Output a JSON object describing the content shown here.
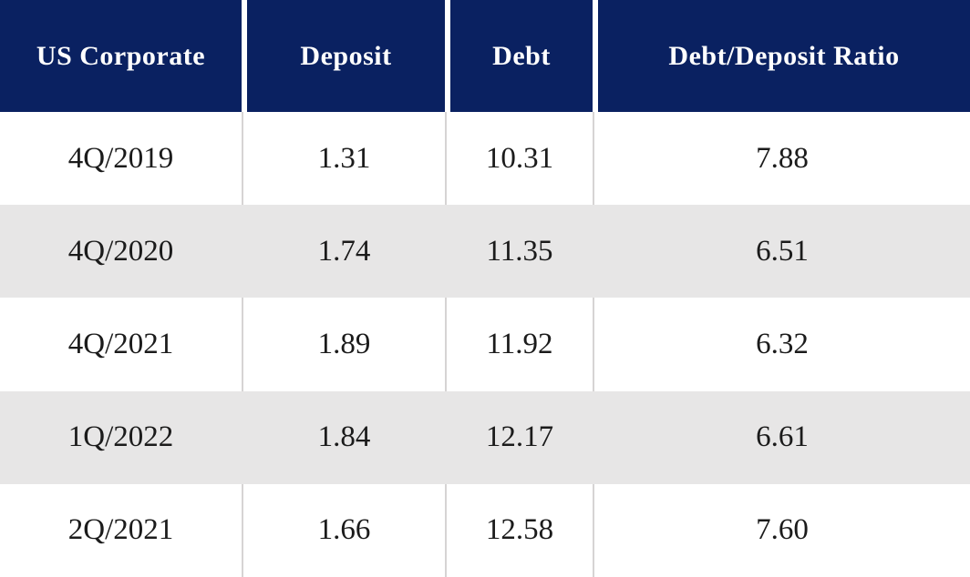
{
  "table": {
    "columns": [
      {
        "key": "period",
        "label": "US Corporate"
      },
      {
        "key": "deposit",
        "label": "Deposit"
      },
      {
        "key": "debt",
        "label": "Debt"
      },
      {
        "key": "ratio",
        "label": "Debt/Deposit Ratio"
      }
    ],
    "rows": [
      {
        "period": "4Q/2019",
        "deposit": "1.31",
        "debt": "10.31",
        "ratio": "7.88"
      },
      {
        "period": "4Q/2020",
        "deposit": "1.74",
        "debt": "11.35",
        "ratio": "6.51"
      },
      {
        "period": "4Q/2021",
        "deposit": "1.89",
        "debt": "11.92",
        "ratio": "6.32"
      },
      {
        "period": "1Q/2022",
        "deposit": "1.84",
        "debt": "12.17",
        "ratio": "6.61"
      },
      {
        "period": "2Q/2021",
        "deposit": "1.66",
        "debt": "12.58",
        "ratio": "7.60"
      }
    ]
  },
  "colors": {
    "header-bg": "#0a2161",
    "header-text": "#ffffff",
    "separator-header": "#ffffff",
    "row-bg": "#ffffff",
    "row-alt-bg": "#e7e6e6",
    "divider": "#d6d4d4",
    "body-text": "#1b1b1b"
  },
  "chart_data": {
    "type": "table",
    "title": "US Corporate",
    "columns": [
      "US Corporate",
      "Deposit",
      "Debt",
      "Debt/Deposit Ratio"
    ],
    "categories": [
      "4Q/2019",
      "4Q/2020",
      "4Q/2021",
      "1Q/2022",
      "2Q/2021"
    ],
    "series": [
      {
        "name": "Deposit",
        "values": [
          1.31,
          1.74,
          1.89,
          1.84,
          1.66
        ]
      },
      {
        "name": "Debt",
        "values": [
          10.31,
          11.35,
          11.92,
          12.17,
          12.58
        ]
      },
      {
        "name": "Debt/Deposit Ratio",
        "values": [
          7.88,
          6.51,
          6.32,
          6.61,
          7.6
        ]
      }
    ],
    "layout": {
      "header_background": "#0a2161",
      "alternating_row_shading": true,
      "text_alignment": "center"
    }
  }
}
